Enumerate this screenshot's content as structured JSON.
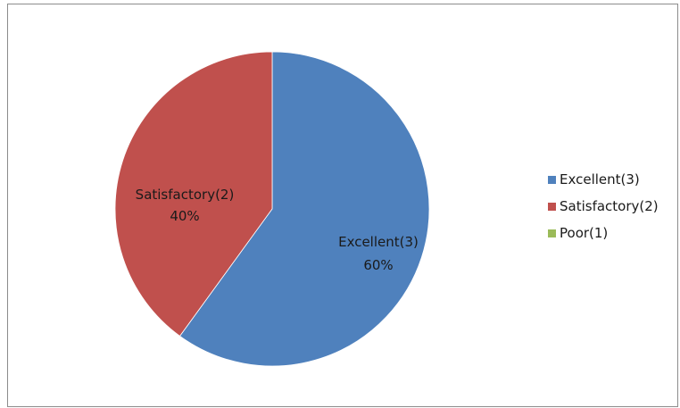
{
  "chart_data": {
    "type": "pie",
    "categories": [
      "Excellent(3)",
      "Satisfactory(2)",
      "Poor(1)"
    ],
    "values": [
      60,
      40,
      0
    ],
    "data_labels": [
      {
        "category": "Excellent(3)",
        "percent": "60%"
      },
      {
        "category": "Satisfactory(2)",
        "percent": "40%"
      }
    ],
    "colors": [
      "#4f81bd",
      "#c0504d",
      "#9bbb59"
    ],
    "legend_position": "right"
  }
}
